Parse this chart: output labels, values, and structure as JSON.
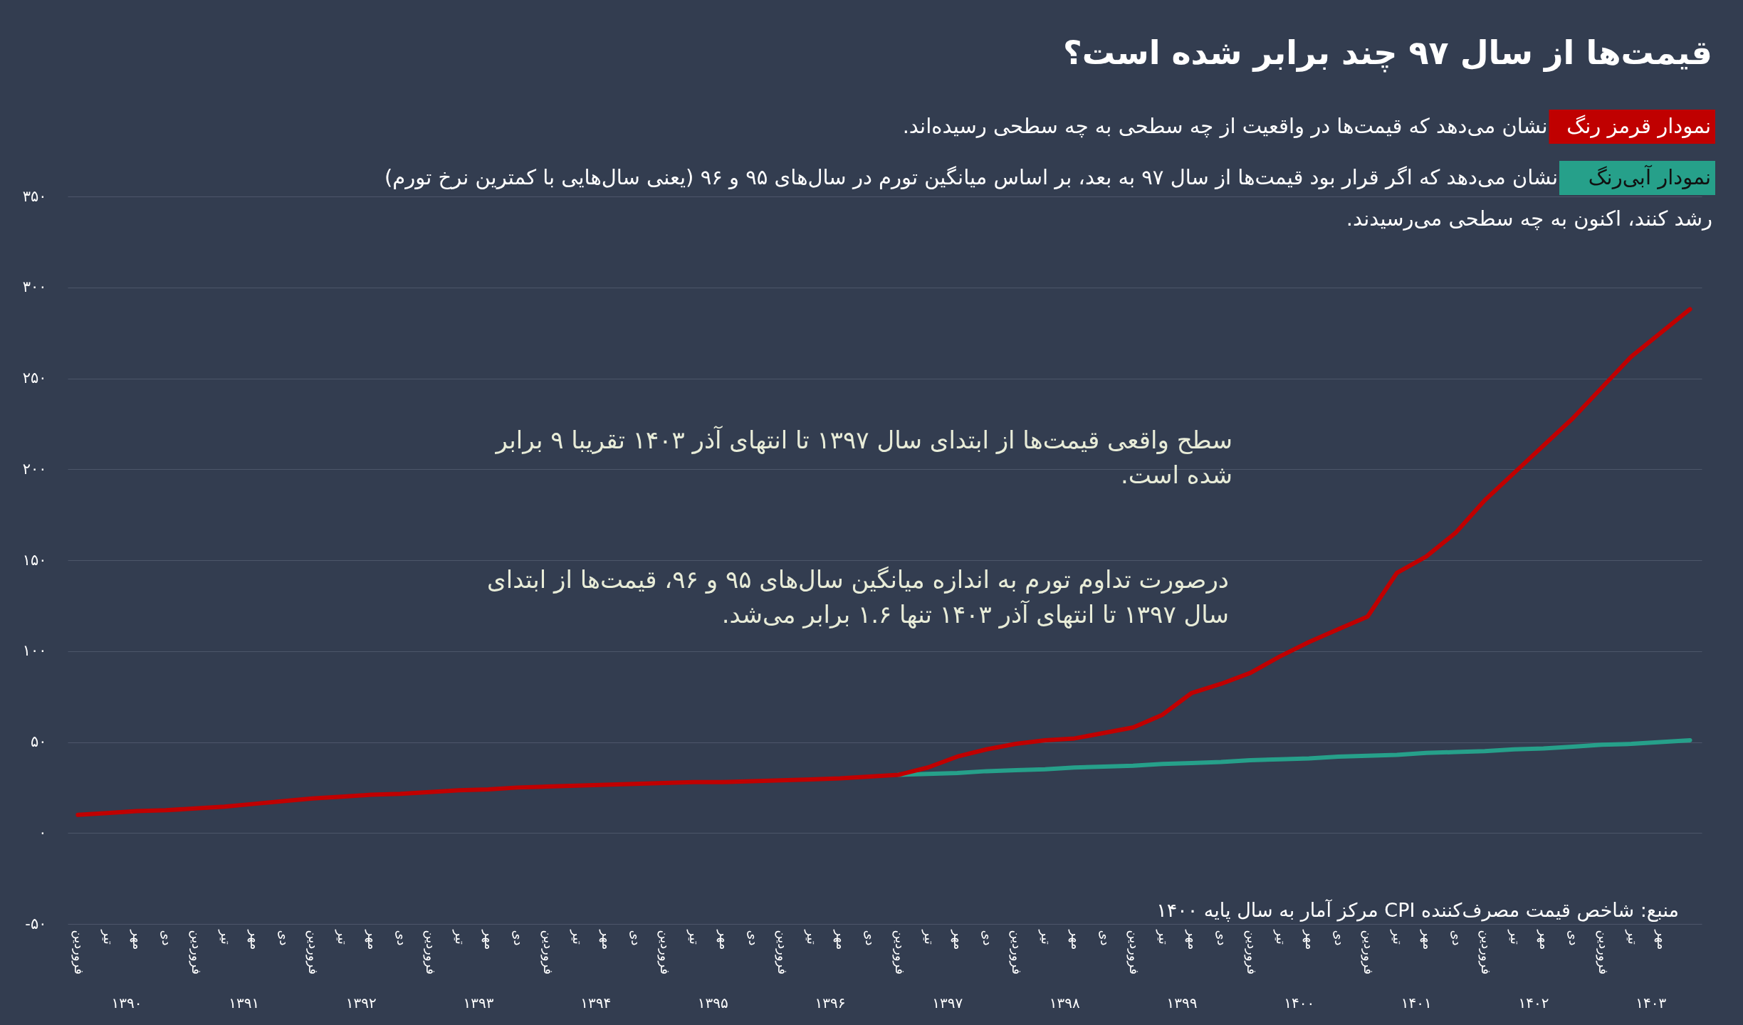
{
  "chart_data": {
    "type": "line",
    "title": "قیمت‌ها از سال ۹۷ چند برابر شده است؟",
    "subtitle": "نشان می‌دهد که قیمت‌ها در واقعیت از چه سطحی به چه سطحی رسیده‌اند.",
    "categories": [
      "فروردین",
      "تیر",
      "مهر",
      "دی",
      "فروردین",
      "تیر",
      "مهر",
      "دی",
      "فروردین",
      "تیر",
      "مهر",
      "دی",
      "فروردین",
      "تیر",
      "مهر",
      "دی",
      "فروردین",
      "تیر",
      "مهر",
      "دی",
      "فروردین",
      "تیر",
      "مهر",
      "دی",
      "فروردین",
      "تیر",
      "مهر",
      "دی",
      "فروردین",
      "تیر",
      "مهر",
      "دی",
      "فروردین",
      "تیر",
      "مهر",
      "دی",
      "فروردین",
      "تیر",
      "مهر",
      "دی",
      "فروردین",
      "تیر",
      "مهر",
      "دی",
      "فروردین",
      "تیر",
      "مهر",
      "دی",
      "فروردین",
      "تیر",
      "مهر",
      "دی",
      "فروردین",
      "تیر",
      "مهر",
      null
    ],
    "series": [
      {
        "name": "نمودار قرمز رنگ",
        "color": "#c00000",
        "values": [
          10,
          11,
          12,
          12.5,
          13.5,
          14.5,
          16,
          17.5,
          19,
          20,
          21,
          21.5,
          22.5,
          23.5,
          24,
          25,
          25.5,
          26,
          26.5,
          27,
          27.5,
          28,
          28,
          28.5,
          29,
          29.5,
          30,
          31,
          32,
          36,
          42,
          46,
          49,
          51,
          52,
          55,
          58,
          65,
          77,
          82,
          88,
          97,
          105,
          112,
          119,
          143,
          152,
          165,
          183,
          198,
          213,
          228,
          245,
          262,
          275,
          288
        ]
      },
      {
        "name": "نمودار آبی‌رنگ",
        "color": "#26a08a",
        "values": [
          null,
          null,
          null,
          null,
          null,
          null,
          null,
          null,
          null,
          null,
          null,
          null,
          null,
          null,
          null,
          null,
          null,
          null,
          null,
          null,
          null,
          null,
          null,
          null,
          null,
          null,
          null,
          null,
          32,
          32.5,
          33,
          34,
          34.5,
          35,
          36,
          36.5,
          37,
          38,
          38.5,
          39,
          40,
          40.5,
          41,
          42,
          42.5,
          43,
          44,
          44.5,
          45,
          46,
          46.5,
          47.5,
          48.5,
          49,
          50,
          51
        ]
      }
    ],
    "ylim": [
      -50,
      350
    ],
    "yticks": [
      {
        "value": -50,
        "label": "-۵۰"
      },
      {
        "value": 0,
        "label": "۰"
      },
      {
        "value": 50,
        "label": "۵۰"
      },
      {
        "value": 100,
        "label": "۱۰۰"
      },
      {
        "value": 150,
        "label": "۱۵۰"
      },
      {
        "value": 200,
        "label": "۲۰۰"
      },
      {
        "value": 250,
        "label": "۲۵۰"
      },
      {
        "value": 300,
        "label": "۳۰۰"
      },
      {
        "value": 350,
        "label": "۳۵۰"
      }
    ],
    "grid": "y",
    "annotations": [
      "نشان می‌دهد که اگر قرار بود قیمت‌ها از سال ۹۷ به بعد، بر اساس میانگین تورم در سال‌های ۹۵ و ۹۶ (یعنی سال‌هایی با کمترین نرخ تورم)\nرشد کنند، اکنون به چه سطحی می‌رسیدند.",
      "سطح واقعی قیمت‌ها از ابتدای سال ۱۳۹۷ تا انتهای آذر ۱۴۰۳ تقریبا ۹ برابر\nشده است.",
      "درصورت تداوم تورم به اندازه میانگین سال‌های ۹۵ و ۹۶، قیمت‌ها از ابتدای\nسال ۱۳۹۷ تا انتهای آذر ۱۴۰۳ تنها ۱.۶ برابر می‌شد.",
      "۱۳۹۰",
      "۱۳۹۱",
      "۱۳۹۲",
      "۱۳۹۳",
      "۱۳۹۴",
      "۱۳۹۵",
      "۱۳۹۶",
      "۱۳۹۷",
      "۱۳۹۸",
      "۱۳۹۹",
      "۱۴۰۰",
      "۱۴۰۱",
      "۱۴۰۲",
      "۱۴۰۳",
      "منبع: شاخص قیمت مصرف‌کننده CPI مرکز آمار به سال پایه ۱۴۰۰"
    ]
  }
}
